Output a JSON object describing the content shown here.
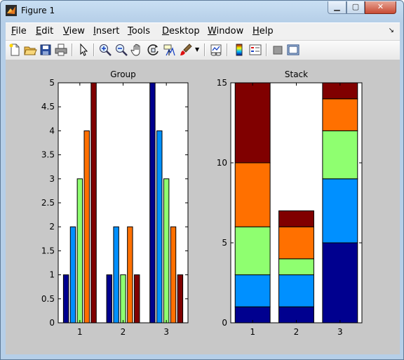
{
  "window": {
    "title": "Figure 1"
  },
  "window_controls": {
    "minimize": "▁",
    "maximize": "▢",
    "close": "✕"
  },
  "menu": [
    "File",
    "Edit",
    "View",
    "Insert",
    "Tools",
    "Desktop",
    "Window",
    "Help"
  ],
  "toolbar_icons": [
    "new-figure-icon",
    "open-file-icon",
    "save-icon",
    "print-icon",
    "edit-plot-arrow-icon",
    "zoom-in-icon",
    "zoom-out-icon",
    "pan-hand-icon",
    "rotate-3d-icon",
    "data-cursor-icon",
    "brush-icon",
    "link-plot-icon",
    "colorbar-icon",
    "legend-icon",
    "hide-plot-tools-icon",
    "show-plot-tools-icon"
  ],
  "colors": [
    "#00008F",
    "#0090FF",
    "#8FFF70",
    "#FF7000",
    "#800000"
  ],
  "chart_data": [
    {
      "type": "bar",
      "title": "Group",
      "mode": "grouped",
      "categories": [
        "1",
        "2",
        "3"
      ],
      "series": [
        {
          "values": [
            1,
            1,
            5
          ]
        },
        {
          "values": [
            2,
            2,
            4
          ]
        },
        {
          "values": [
            3,
            1,
            3
          ]
        },
        {
          "values": [
            4,
            2,
            2
          ]
        },
        {
          "values": [
            5,
            1,
            1
          ]
        }
      ],
      "ylim": [
        0,
        5
      ],
      "yticks": [
        "0",
        "0.5",
        "1",
        "1.5",
        "2",
        "2.5",
        "3",
        "3.5",
        "4",
        "4.5",
        "5"
      ],
      "grid": false
    },
    {
      "type": "bar",
      "title": "Stack",
      "mode": "stacked",
      "categories": [
        "1",
        "2",
        "3"
      ],
      "series": [
        {
          "values": [
            1,
            1,
            5
          ]
        },
        {
          "values": [
            2,
            2,
            4
          ]
        },
        {
          "values": [
            3,
            1,
            3
          ]
        },
        {
          "values": [
            4,
            2,
            2
          ]
        },
        {
          "values": [
            5,
            1,
            1
          ]
        }
      ],
      "ylim": [
        0,
        15
      ],
      "yticks": [
        "0",
        "5",
        "10",
        "15"
      ],
      "grid": false
    }
  ]
}
